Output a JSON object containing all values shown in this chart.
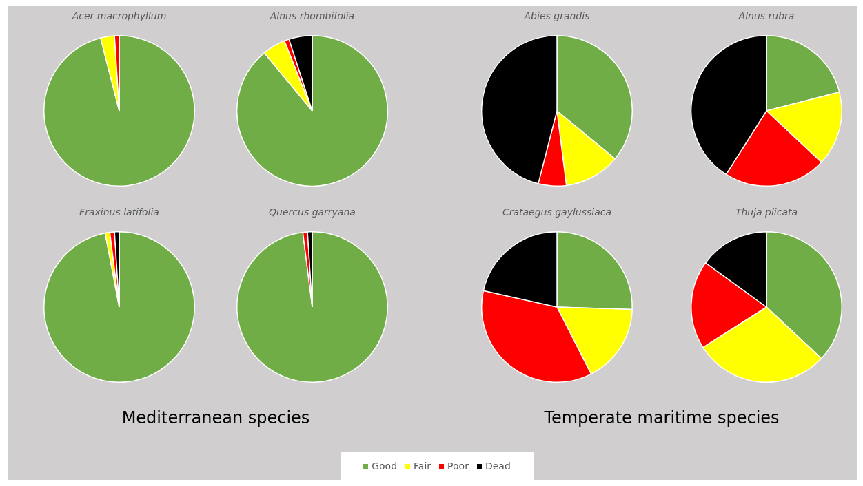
{
  "chart_data": [
    {
      "type": "pie",
      "title": "Acer macrophyllum",
      "categories": [
        "Good",
        "Fair",
        "Poor",
        "Dead"
      ],
      "values": [
        96,
        3,
        1,
        0
      ],
      "colors": [
        "#70ad47",
        "#ffff00",
        "#ff0000",
        "#000000"
      ],
      "legend": "bottom"
    },
    {
      "type": "pie",
      "title": "Alnus rhombifolia",
      "categories": [
        null,
        null,
        null,
        null
      ],
      "values": [
        89,
        5,
        1,
        5
      ],
      "colors": [
        "#70ad47",
        "#ffff00",
        "#ff0000",
        "#000000"
      ]
    },
    {
      "type": "pie",
      "title": "Abies grandis",
      "categories": [
        null,
        null,
        null,
        null
      ],
      "values": [
        36,
        12,
        6,
        46
      ],
      "colors": [
        "#70ad47",
        "#ffff00",
        "#ff0000",
        "#000000"
      ]
    },
    {
      "type": "pie",
      "title": "Alnus rubra",
      "categories": [
        null,
        null,
        null,
        null
      ],
      "values": [
        21,
        16,
        22,
        41
      ],
      "colors": [
        "#70ad47",
        "#ffff00",
        "#ff0000",
        "#000000"
      ]
    },
    {
      "type": "pie",
      "title": "Fraxinus latifolia",
      "categories": [
        null,
        null,
        null,
        null
      ],
      "values": [
        97,
        1,
        1,
        1
      ],
      "colors": [
        "#70ad47",
        "#ffff00",
        "#ff0000",
        "#000000"
      ],
      "annotations": [
        "Mediterranean species"
      ]
    },
    {
      "type": "pie",
      "title": "Quercus garryana",
      "categories": [
        null,
        null,
        null,
        null
      ],
      "values": [
        98,
        0,
        1,
        1
      ],
      "colors": [
        "#70ad47",
        "#ffff00",
        "#ff0000",
        "#000000"
      ]
    },
    {
      "type": "pie",
      "title": "Crataegus gaylussiaca",
      "categories": [
        null,
        null,
        null,
        null
      ],
      "values": [
        25.5,
        17,
        36,
        21.5
      ],
      "colors": [
        "#70ad47",
        "#ffff00",
        "#ff0000",
        "#000000"
      ],
      "annotations": [
        "Temperate maritime species"
      ]
    },
    {
      "type": "pie",
      "title": "Thuja plicata",
      "categories": [
        null,
        null,
        null,
        null
      ],
      "values": [
        37,
        29,
        19,
        15
      ],
      "colors": [
        "#70ad47",
        "#ffff00",
        "#ff0000",
        "#000000"
      ]
    }
  ]
}
